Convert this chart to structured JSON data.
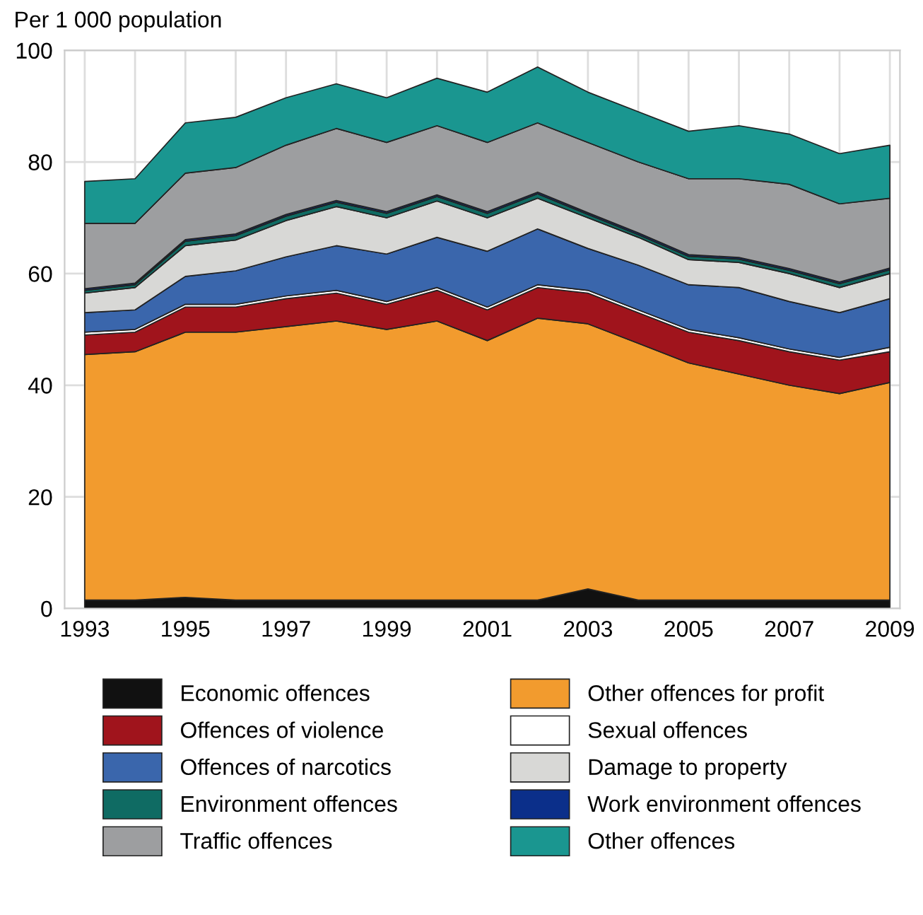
{
  "chart_data": {
    "type": "area",
    "stacked": true,
    "ylabel": "Per 1 000 population",
    "x": [
      1993,
      1994,
      1995,
      1996,
      1997,
      1998,
      1999,
      2000,
      2001,
      2002,
      2003,
      2004,
      2005,
      2006,
      2007,
      2008,
      2009
    ],
    "xlim": [
      1992.6,
      2009.2
    ],
    "ylim": [
      0,
      100
    ],
    "yticks": [
      0,
      20,
      40,
      60,
      80,
      100
    ],
    "xticks": [
      1993,
      {
        "value": 1994,
        "label": null
      },
      1995,
      {
        "value": 1996,
        "label": null
      },
      1997,
      {
        "value": 1998,
        "label": null
      },
      1999,
      {
        "value": 2000,
        "label": null
      },
      2001,
      {
        "value": 2002,
        "label": null
      },
      2003,
      {
        "value": 2004,
        "label": null
      },
      2005,
      {
        "value": 2006,
        "label": null
      },
      2007,
      {
        "value": 2008,
        "label": null
      },
      2009
    ],
    "grid": true,
    "legend": "bottom",
    "series": [
      {
        "name": "Economic offences",
        "color": "#111111",
        "values": [
          1.5,
          1.5,
          2,
          1.5,
          1.5,
          1.5,
          1.5,
          1.5,
          1.5,
          1.5,
          3.5,
          1.5,
          1.5,
          1.5,
          1.5,
          1.5,
          1.5
        ]
      },
      {
        "name": "Other offences for profit",
        "color": "#f29b2e",
        "values": [
          44,
          44.5,
          47.5,
          48,
          49,
          50,
          48.5,
          50,
          46.5,
          50.5,
          47.5,
          46,
          42.5,
          40.5,
          38.5,
          37,
          39
        ]
      },
      {
        "name": "Offences of violence",
        "color": "#a0141c",
        "values": [
          3.5,
          3.5,
          4.5,
          4.5,
          5,
          5,
          4.5,
          5.5,
          5.5,
          5.5,
          5.5,
          5.5,
          5.5,
          6,
          6,
          6,
          5.5
        ]
      },
      {
        "name": "Sexual offences",
        "color": "#ffffff",
        "values": [
          0.5,
          0.5,
          0.5,
          0.5,
          0.5,
          0.5,
          0.5,
          0.5,
          0.5,
          0.5,
          0.5,
          0.5,
          0.5,
          0.5,
          0.5,
          0.5,
          0.8
        ]
      },
      {
        "name": "Offences of narcotics",
        "color": "#3a66ac",
        "values": [
          3.5,
          3.5,
          5,
          6,
          7,
          8,
          8.5,
          9,
          10,
          10,
          7.5,
          8,
          8,
          9,
          8.5,
          8,
          8.7
        ]
      },
      {
        "name": "Damage to property",
        "color": "#d8d8d6",
        "values": [
          3.5,
          4,
          5.5,
          5.5,
          6.5,
          7,
          6.5,
          6.5,
          6,
          5.5,
          5.5,
          5,
          4.5,
          4.5,
          5,
          4.5,
          4.5
        ]
      },
      {
        "name": "Environment offences",
        "color": "#0f6b63",
        "values": [
          0.5,
          0.5,
          0.8,
          0.8,
          0.8,
          0.8,
          0.8,
          0.8,
          0.8,
          0.8,
          0.6,
          0.5,
          0.6,
          0.6,
          0.6,
          0.7,
          0.7
        ]
      },
      {
        "name": "Work environment offences",
        "color": "#0b2f8a",
        "values": [
          0.3,
          0.3,
          0.3,
          0.3,
          0.3,
          0.3,
          0.3,
          0.3,
          0.3,
          0.3,
          0.3,
          0.3,
          0.3,
          0.3,
          0.3,
          0.3,
          0.3
        ]
      },
      {
        "name": "Traffic offences",
        "color": "#9d9ea0",
        "values": [
          11.7,
          10.7,
          11.9,
          11.9,
          12.4,
          12.9,
          12.4,
          12.4,
          12.4,
          12.4,
          12.6,
          12.7,
          13.6,
          14.1,
          15.1,
          14,
          12.5
        ]
      },
      {
        "name": "Other offences",
        "color": "#1a9690",
        "values": [
          7.5,
          8,
          9,
          9,
          8.5,
          8,
          8,
          8.5,
          9,
          10,
          9,
          9,
          8.5,
          9.5,
          9,
          9,
          9.5
        ]
      }
    ]
  }
}
